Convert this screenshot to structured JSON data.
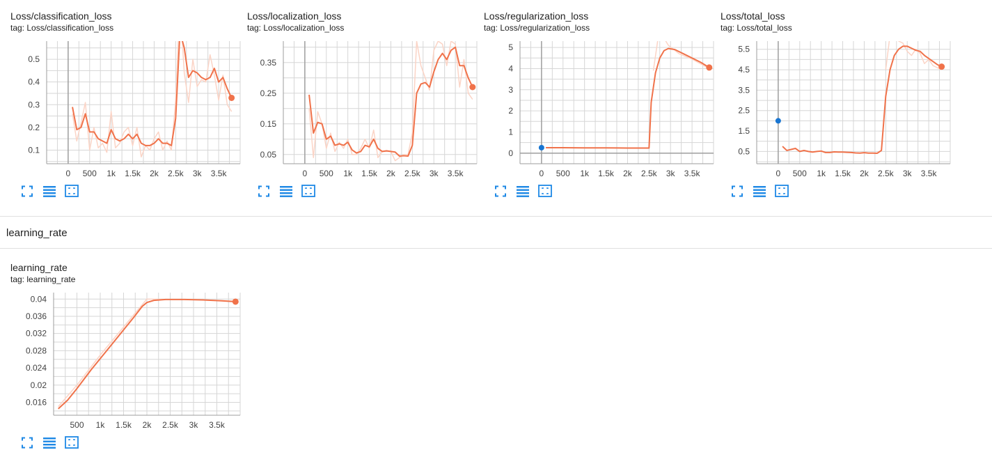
{
  "colors": {
    "line": "#f0724a",
    "raw": "#fbd4c6",
    "grid": "#d6d6d6",
    "axis": "#9e9e9e",
    "dot_blue": "#1976d2",
    "icon": "#1e88e5"
  },
  "controls": {
    "icons": [
      "fullscreen-icon",
      "data-table-icon",
      "fit-domain-icon"
    ]
  },
  "section": {
    "title": "learning_rate"
  },
  "charts": [
    {
      "title": "Loss/classification_loss",
      "tag": "tag: Loss/classification_loss",
      "xticks": [
        "0",
        "500",
        "1k",
        "1.5k",
        "2k",
        "2.5k",
        "3k",
        "3.5k"
      ],
      "xtick_values": [
        0,
        500,
        1000,
        1500,
        2000,
        2500,
        3000,
        3500
      ],
      "yticks": [
        "0.1",
        "0.2",
        "0.3",
        "0.4",
        "0.5"
      ],
      "ytick_values": [
        0.1,
        0.2,
        0.3,
        0.4,
        0.5
      ],
      "xlim": [
        -500,
        4000
      ],
      "ylim": [
        0.04,
        0.58
      ],
      "zero_axis": "x",
      "smoothed": [
        [
          100,
          0.29
        ],
        [
          200,
          0.19
        ],
        [
          300,
          0.2
        ],
        [
          400,
          0.26
        ],
        [
          500,
          0.18
        ],
        [
          600,
          0.18
        ],
        [
          700,
          0.15
        ],
        [
          800,
          0.14
        ],
        [
          900,
          0.13
        ],
        [
          1000,
          0.19
        ],
        [
          1100,
          0.15
        ],
        [
          1200,
          0.14
        ],
        [
          1300,
          0.15
        ],
        [
          1400,
          0.17
        ],
        [
          1500,
          0.15
        ],
        [
          1600,
          0.17
        ],
        [
          1700,
          0.13
        ],
        [
          1800,
          0.12
        ],
        [
          1900,
          0.12
        ],
        [
          2000,
          0.13
        ],
        [
          2100,
          0.15
        ],
        [
          2200,
          0.13
        ],
        [
          2300,
          0.13
        ],
        [
          2400,
          0.12
        ],
        [
          2500,
          0.24
        ],
        [
          2600,
          0.62
        ],
        [
          2700,
          0.55
        ],
        [
          2800,
          0.42
        ],
        [
          2900,
          0.45
        ],
        [
          3000,
          0.44
        ],
        [
          3100,
          0.42
        ],
        [
          3200,
          0.41
        ],
        [
          3300,
          0.42
        ],
        [
          3400,
          0.46
        ],
        [
          3500,
          0.4
        ],
        [
          3600,
          0.42
        ],
        [
          3700,
          0.37
        ],
        [
          3800,
          0.33
        ]
      ],
      "raw": [
        [
          100,
          0.26
        ],
        [
          200,
          0.14
        ],
        [
          300,
          0.22
        ],
        [
          400,
          0.31
        ],
        [
          500,
          0.1
        ],
        [
          600,
          0.2
        ],
        [
          700,
          0.11
        ],
        [
          800,
          0.13
        ],
        [
          900,
          0.09
        ],
        [
          1000,
          0.27
        ],
        [
          1100,
          0.11
        ],
        [
          1200,
          0.13
        ],
        [
          1300,
          0.18
        ],
        [
          1400,
          0.2
        ],
        [
          1500,
          0.12
        ],
        [
          1600,
          0.2
        ],
        [
          1700,
          0.07
        ],
        [
          1800,
          0.12
        ],
        [
          1900,
          0.1
        ],
        [
          2000,
          0.15
        ],
        [
          2100,
          0.18
        ],
        [
          2200,
          0.1
        ],
        [
          2300,
          0.14
        ],
        [
          2400,
          0.1
        ],
        [
          2500,
          0.32
        ],
        [
          2600,
          0.75
        ],
        [
          2700,
          0.44
        ],
        [
          2800,
          0.31
        ],
        [
          2900,
          0.5
        ],
        [
          3000,
          0.38
        ],
        [
          3100,
          0.41
        ],
        [
          3200,
          0.4
        ],
        [
          3300,
          0.52
        ],
        [
          3400,
          0.43
        ],
        [
          3500,
          0.32
        ],
        [
          3600,
          0.43
        ],
        [
          3700,
          0.3
        ],
        [
          3800,
          0.27
        ]
      ],
      "end_dot": [
        3800,
        0.33
      ]
    },
    {
      "title": "Loss/localization_loss",
      "tag": "tag: Loss/localization_loss",
      "xticks": [
        "0",
        "500",
        "1k",
        "1.5k",
        "2k",
        "2.5k",
        "3k",
        "3.5k"
      ],
      "xtick_values": [
        0,
        500,
        1000,
        1500,
        2000,
        2500,
        3000,
        3500
      ],
      "yticks": [
        "0.05",
        "0.15",
        "0.25",
        "0.35"
      ],
      "ytick_values": [
        0.05,
        0.15,
        0.25,
        0.35
      ],
      "xlim": [
        -500,
        4000
      ],
      "ylim": [
        0.02,
        0.42
      ],
      "zero_axis": "x",
      "smoothed": [
        [
          100,
          0.245
        ],
        [
          200,
          0.12
        ],
        [
          300,
          0.155
        ],
        [
          400,
          0.15
        ],
        [
          500,
          0.1
        ],
        [
          600,
          0.11
        ],
        [
          700,
          0.08
        ],
        [
          800,
          0.085
        ],
        [
          900,
          0.08
        ],
        [
          1000,
          0.09
        ],
        [
          1100,
          0.065
        ],
        [
          1200,
          0.055
        ],
        [
          1300,
          0.06
        ],
        [
          1400,
          0.08
        ],
        [
          1500,
          0.075
        ],
        [
          1600,
          0.1
        ],
        [
          1700,
          0.07
        ],
        [
          1800,
          0.06
        ],
        [
          1900,
          0.062
        ],
        [
          2000,
          0.06
        ],
        [
          2100,
          0.058
        ],
        [
          2200,
          0.045
        ],
        [
          2300,
          0.046
        ],
        [
          2400,
          0.045
        ],
        [
          2500,
          0.08
        ],
        [
          2600,
          0.25
        ],
        [
          2700,
          0.28
        ],
        [
          2800,
          0.285
        ],
        [
          2900,
          0.27
        ],
        [
          3000,
          0.32
        ],
        [
          3100,
          0.36
        ],
        [
          3200,
          0.38
        ],
        [
          3300,
          0.36
        ],
        [
          3400,
          0.39
        ],
        [
          3500,
          0.4
        ],
        [
          3600,
          0.34
        ],
        [
          3700,
          0.34
        ],
        [
          3800,
          0.3
        ],
        [
          3900,
          0.27
        ]
      ],
      "raw": [
        [
          100,
          0.2
        ],
        [
          200,
          0.04
        ],
        [
          300,
          0.19
        ],
        [
          400,
          0.15
        ],
        [
          500,
          0.07
        ],
        [
          600,
          0.12
        ],
        [
          700,
          0.06
        ],
        [
          800,
          0.09
        ],
        [
          900,
          0.07
        ],
        [
          1000,
          0.1
        ],
        [
          1100,
          0.05
        ],
        [
          1200,
          0.05
        ],
        [
          1300,
          0.07
        ],
        [
          1400,
          0.1
        ],
        [
          1500,
          0.07
        ],
        [
          1600,
          0.13
        ],
        [
          1700,
          0.04
        ],
        [
          1800,
          0.06
        ],
        [
          1900,
          0.06
        ],
        [
          2000,
          0.06
        ],
        [
          2100,
          0.03
        ],
        [
          2200,
          0.04
        ],
        [
          2300,
          0.05
        ],
        [
          2400,
          0.05
        ],
        [
          2500,
          0.12
        ],
        [
          2600,
          0.42
        ],
        [
          2700,
          0.34
        ],
        [
          2800,
          0.3
        ],
        [
          2900,
          0.26
        ],
        [
          3000,
          0.39
        ],
        [
          3100,
          0.42
        ],
        [
          3200,
          0.41
        ],
        [
          3300,
          0.34
        ],
        [
          3400,
          0.42
        ],
        [
          3500,
          0.41
        ],
        [
          3600,
          0.27
        ],
        [
          3700,
          0.36
        ],
        [
          3800,
          0.25
        ],
        [
          3900,
          0.23
        ]
      ],
      "end_dot": [
        3900,
        0.27
      ]
    },
    {
      "title": "Loss/regularization_loss",
      "tag": "tag: Loss/regularization_loss",
      "xticks": [
        "0",
        "500",
        "1k",
        "1.5k",
        "2k",
        "2.5k",
        "3k",
        "3.5k"
      ],
      "xtick_values": [
        0,
        500,
        1000,
        1500,
        2000,
        2500,
        3000,
        3500
      ],
      "yticks": [
        "0",
        "1",
        "2",
        "3",
        "4",
        "5"
      ],
      "ytick_values": [
        0,
        1,
        2,
        3,
        4,
        5
      ],
      "xlim": [
        -500,
        4000
      ],
      "ylim": [
        -0.5,
        5.3
      ],
      "zero_axis": "both",
      "smoothed": [
        [
          100,
          0.26
        ],
        [
          500,
          0.26
        ],
        [
          1000,
          0.25
        ],
        [
          1500,
          0.25
        ],
        [
          2000,
          0.24
        ],
        [
          2500,
          0.24
        ],
        [
          2550,
          2.4
        ],
        [
          2650,
          3.8
        ],
        [
          2750,
          4.5
        ],
        [
          2850,
          4.85
        ],
        [
          2950,
          4.95
        ],
        [
          3100,
          4.9
        ],
        [
          3300,
          4.7
        ],
        [
          3500,
          4.5
        ],
        [
          3700,
          4.3
        ],
        [
          3900,
          4.05
        ]
      ],
      "raw": [
        [
          2600,
          3.9
        ],
        [
          2700,
          5.3
        ],
        [
          2800,
          5.6
        ],
        [
          2950,
          5.1
        ],
        [
          3200,
          4.7
        ],
        [
          3500,
          4.45
        ],
        [
          3900,
          4.0
        ]
      ],
      "start_dot": [
        0,
        0.26
      ],
      "end_dot": [
        3900,
        4.05
      ]
    },
    {
      "title": "Loss/total_loss",
      "tag": "tag: Loss/total_loss",
      "xticks": [
        "0",
        "500",
        "1k",
        "1.5k",
        "2k",
        "2.5k",
        "3k",
        "3.5k"
      ],
      "xtick_values": [
        0,
        500,
        1000,
        1500,
        2000,
        2500,
        3000,
        3500
      ],
      "yticks": [
        "0.5",
        "1.5",
        "2.5",
        "3.5",
        "4.5",
        "5.5"
      ],
      "ytick_values": [
        0.5,
        1.5,
        2.5,
        3.5,
        4.5,
        5.5
      ],
      "xlim": [
        -500,
        4000
      ],
      "ylim": [
        -0.1,
        5.9
      ],
      "zero_axis": "x",
      "smoothed": [
        [
          100,
          0.75
        ],
        [
          200,
          0.55
        ],
        [
          300,
          0.6
        ],
        [
          400,
          0.65
        ],
        [
          500,
          0.5
        ],
        [
          600,
          0.55
        ],
        [
          700,
          0.5
        ],
        [
          800,
          0.47
        ],
        [
          900,
          0.5
        ],
        [
          1000,
          0.52
        ],
        [
          1100,
          0.45
        ],
        [
          1200,
          0.45
        ],
        [
          1300,
          0.48
        ],
        [
          1400,
          0.47
        ],
        [
          1500,
          0.47
        ],
        [
          1600,
          0.46
        ],
        [
          1700,
          0.45
        ],
        [
          1800,
          0.43
        ],
        [
          1900,
          0.42
        ],
        [
          2000,
          0.44
        ],
        [
          2100,
          0.42
        ],
        [
          2200,
          0.42
        ],
        [
          2300,
          0.41
        ],
        [
          2400,
          0.55
        ],
        [
          2500,
          3.2
        ],
        [
          2600,
          4.5
        ],
        [
          2700,
          5.2
        ],
        [
          2800,
          5.5
        ],
        [
          2900,
          5.65
        ],
        [
          3000,
          5.65
        ],
        [
          3100,
          5.55
        ],
        [
          3200,
          5.45
        ],
        [
          3300,
          5.4
        ],
        [
          3400,
          5.2
        ],
        [
          3500,
          5.05
        ],
        [
          3600,
          4.9
        ],
        [
          3700,
          4.75
        ],
        [
          3800,
          4.65
        ]
      ],
      "raw": [
        [
          2500,
          4.5
        ],
        [
          2600,
          6.2
        ],
        [
          2700,
          6.4
        ],
        [
          2800,
          5.9
        ],
        [
          2900,
          5.8
        ],
        [
          3000,
          5.4
        ],
        [
          3100,
          5.2
        ],
        [
          3200,
          5.5
        ],
        [
          3300,
          5.3
        ],
        [
          3400,
          4.8
        ],
        [
          3500,
          5.0
        ],
        [
          3600,
          4.7
        ],
        [
          3700,
          4.6
        ],
        [
          3800,
          4.5
        ]
      ],
      "start_dot": [
        0,
        2.0
      ],
      "end_dot": [
        3800,
        4.65
      ]
    },
    {
      "title": "learning_rate",
      "tag": "tag: learning_rate",
      "xticks": [
        "500",
        "1k",
        "1.5k",
        "2k",
        "2.5k",
        "3k",
        "3.5k"
      ],
      "xtick_values": [
        500,
        1000,
        1500,
        2000,
        2500,
        3000,
        3500
      ],
      "yticks": [
        "0.016",
        "0.02",
        "0.024",
        "0.028",
        "0.032",
        "0.036",
        "0.04"
      ],
      "ytick_values": [
        0.016,
        0.02,
        0.024,
        0.028,
        0.032,
        0.036,
        0.04
      ],
      "xlim": [
        0,
        4000
      ],
      "ylim": [
        0.013,
        0.0415
      ],
      "zero_axis": "none",
      "smoothed": [
        [
          100,
          0.0145
        ],
        [
          300,
          0.0165
        ],
        [
          500,
          0.0192
        ],
        [
          800,
          0.0235
        ],
        [
          1100,
          0.0275
        ],
        [
          1400,
          0.0315
        ],
        [
          1700,
          0.0355
        ],
        [
          1900,
          0.0383
        ],
        [
          2000,
          0.0392
        ],
        [
          2150,
          0.0397
        ],
        [
          2400,
          0.0399
        ],
        [
          2800,
          0.0399
        ],
        [
          3200,
          0.0398
        ],
        [
          3600,
          0.0396
        ],
        [
          3900,
          0.0394
        ]
      ],
      "raw": [
        [
          100,
          0.015
        ],
        [
          500,
          0.02
        ],
        [
          1000,
          0.027
        ],
        [
          1500,
          0.0335
        ],
        [
          2000,
          0.04
        ],
        [
          2500,
          0.0399
        ],
        [
          3000,
          0.0399
        ],
        [
          3500,
          0.0397
        ],
        [
          3900,
          0.0395
        ]
      ],
      "end_dot": [
        3900,
        0.0394
      ]
    }
  ]
}
